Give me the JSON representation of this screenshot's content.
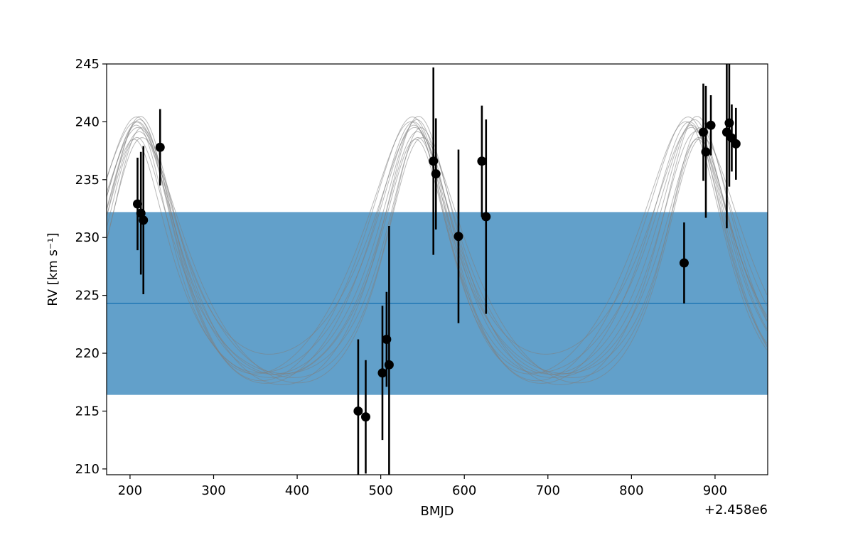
{
  "chart_data": {
    "type": "scatter",
    "xlabel": "BMJD",
    "ylabel": "RV [km s⁻¹]",
    "x_offset_label": "+2.458e6",
    "xlim": [
      172,
      963
    ],
    "ylim": [
      209.5,
      245
    ],
    "xticks": [
      200,
      300,
      400,
      500,
      600,
      700,
      800,
      900
    ],
    "yticks": [
      210,
      215,
      220,
      225,
      230,
      235,
      240,
      245
    ],
    "mean_rv": 224.3,
    "band": [
      216.4,
      232.2
    ],
    "colors": {
      "band": "#62a0ca",
      "mean_line": "#1f77b4",
      "points": "#000000",
      "model_curves": "#808080"
    },
    "points": [
      {
        "x": 209,
        "y": 232.9,
        "err": 4.0
      },
      {
        "x": 213,
        "y": 232.1,
        "err": 5.3
      },
      {
        "x": 216,
        "y": 231.5,
        "err": 6.4
      },
      {
        "x": 236,
        "y": 237.8,
        "err": 3.3
      },
      {
        "x": 473,
        "y": 215.0,
        "err": 6.2
      },
      {
        "x": 482,
        "y": 214.5,
        "err": 4.9
      },
      {
        "x": 502,
        "y": 218.3,
        "err": 5.8
      },
      {
        "x": 507,
        "y": 221.2,
        "err": 4.1
      },
      {
        "x": 510,
        "y": 219.0,
        "err": 12.0
      },
      {
        "x": 563,
        "y": 236.6,
        "err": 8.1
      },
      {
        "x": 566,
        "y": 235.5,
        "err": 4.8
      },
      {
        "x": 593,
        "y": 230.1,
        "err": 7.5
      },
      {
        "x": 621,
        "y": 236.6,
        "err": 4.8
      },
      {
        "x": 626,
        "y": 231.8,
        "err": 8.4
      },
      {
        "x": 863,
        "y": 227.8,
        "err": 3.5
      },
      {
        "x": 886,
        "y": 239.1,
        "err": 4.2
      },
      {
        "x": 889,
        "y": 237.4,
        "err": 5.7
      },
      {
        "x": 895,
        "y": 239.7,
        "err": 2.6
      },
      {
        "x": 914,
        "y": 239.1,
        "err": 8.3
      },
      {
        "x": 917,
        "y": 239.9,
        "err": 5.5
      },
      {
        "x": 920,
        "y": 238.6,
        "err": 2.9
      },
      {
        "x": 925,
        "y": 238.1,
        "err": 3.1
      }
    ],
    "model_curves": [
      {
        "V": 225.5,
        "K": 10.5,
        "e": 0.3,
        "omega": 0.0,
        "P": 333,
        "tp": 544
      },
      {
        "V": 225.6,
        "K": 11.3,
        "e": 0.28,
        "omega": 0.2,
        "P": 330,
        "tp": 545
      },
      {
        "V": 225.2,
        "K": 10.8,
        "e": 0.33,
        "omega": -0.2,
        "P": 334,
        "tp": 543
      },
      {
        "V": 226.3,
        "K": 11.4,
        "e": 0.25,
        "omega": 0.3,
        "P": 330,
        "tp": 547
      },
      {
        "V": 224.9,
        "K": 10.2,
        "e": 0.35,
        "omega": -0.1,
        "P": 336,
        "tp": 542
      },
      {
        "V": 225.8,
        "K": 11.0,
        "e": 0.31,
        "omega": 0.1,
        "P": 332,
        "tp": 546
      },
      {
        "V": 225.1,
        "K": 10.6,
        "e": 0.29,
        "omega": -0.3,
        "P": 335,
        "tp": 541
      },
      {
        "V": 226.5,
        "K": 10.9,
        "e": 0.26,
        "omega": 0.4,
        "P": 329,
        "tp": 548
      },
      {
        "V": 224.7,
        "K": 10.3,
        "e": 0.34,
        "omega": 0.05,
        "P": 337,
        "tp": 543
      },
      {
        "V": 227.1,
        "K": 9.8,
        "e": 0.27,
        "omega": 0.15,
        "P": 331,
        "tp": 545
      },
      {
        "V": 225.4,
        "K": 11.6,
        "e": 0.3,
        "omega": -0.05,
        "P": 333,
        "tp": 544
      },
      {
        "V": 225.7,
        "K": 10.7,
        "e": 0.32,
        "omega": 0.25,
        "P": 332,
        "tp": 546
      }
    ]
  }
}
